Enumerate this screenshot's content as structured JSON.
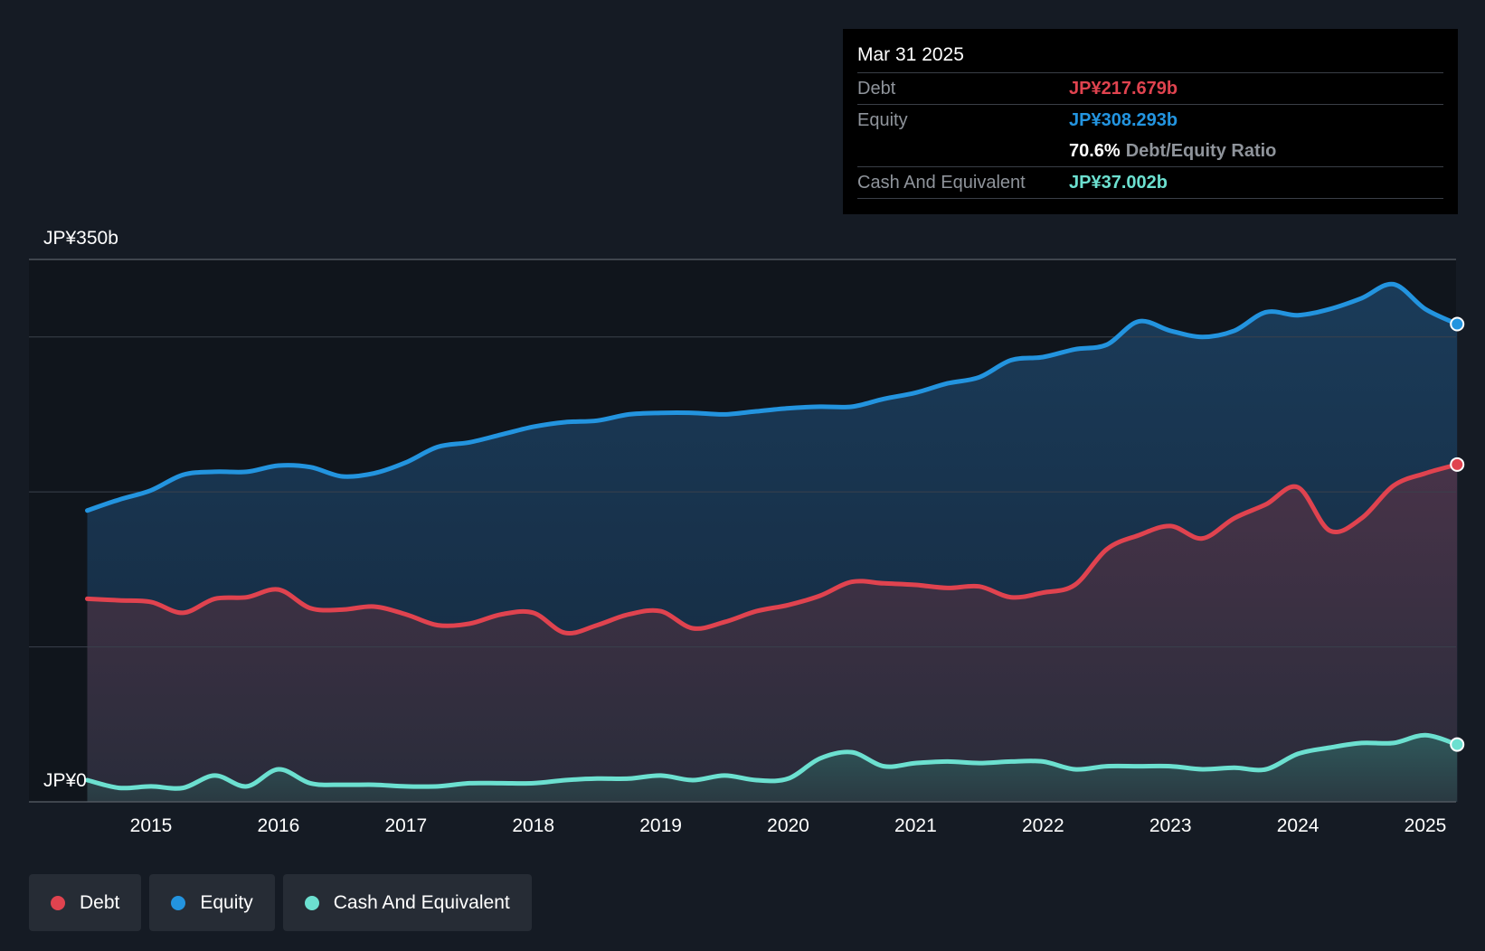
{
  "tooltip": {
    "date": "Mar 31 2025",
    "debt_label": "Debt",
    "debt_value": "JP¥217.679b",
    "equity_label": "Equity",
    "equity_value": "JP¥308.293b",
    "ratio_value": "70.6%",
    "ratio_label": "Debt/Equity Ratio",
    "cash_label": "Cash And Equivalent",
    "cash_value": "JP¥37.002b"
  },
  "legend": {
    "debt": "Debt",
    "equity": "Equity",
    "cash": "Cash And Equivalent"
  },
  "colors": {
    "debt": "#e0434f",
    "equity": "#2394df",
    "cash": "#6ce0d0",
    "background": "#151b24"
  },
  "chart_data": {
    "type": "area",
    "title": "",
    "xlabel": "",
    "ylabel": "",
    "y_top_label": "JP¥350b",
    "y_bottom_label": "JP¥0",
    "ylim": [
      0,
      350
    ],
    "xlim": [
      2014.5,
      2025.25
    ],
    "gridlines": [
      0,
      100,
      200,
      300,
      350
    ],
    "x_ticks": [
      2015,
      2016,
      2017,
      2018,
      2019,
      2020,
      2021,
      2022,
      2023,
      2024,
      2025
    ],
    "x_tick_labels": [
      "2015",
      "2016",
      "2017",
      "2018",
      "2019",
      "2020",
      "2021",
      "2022",
      "2023",
      "2024",
      "2025"
    ],
    "series": [
      {
        "name": "Equity",
        "key": "equity",
        "points": [
          [
            2014.5,
            188
          ],
          [
            2014.75,
            195
          ],
          [
            2015.0,
            201
          ],
          [
            2015.25,
            211
          ],
          [
            2015.5,
            213
          ],
          [
            2015.75,
            213
          ],
          [
            2016.0,
            217
          ],
          [
            2016.25,
            216
          ],
          [
            2016.5,
            210
          ],
          [
            2016.75,
            212
          ],
          [
            2017.0,
            219
          ],
          [
            2017.25,
            229
          ],
          [
            2017.5,
            232
          ],
          [
            2017.75,
            237
          ],
          [
            2018.0,
            242
          ],
          [
            2018.25,
            245
          ],
          [
            2018.5,
            246
          ],
          [
            2018.75,
            250
          ],
          [
            2019.0,
            251
          ],
          [
            2019.25,
            251
          ],
          [
            2019.5,
            250
          ],
          [
            2019.75,
            252
          ],
          [
            2020.0,
            254
          ],
          [
            2020.25,
            255
          ],
          [
            2020.5,
            255
          ],
          [
            2020.75,
            260
          ],
          [
            2021.0,
            264
          ],
          [
            2021.25,
            270
          ],
          [
            2021.5,
            274
          ],
          [
            2021.75,
            285
          ],
          [
            2022.0,
            287
          ],
          [
            2022.25,
            292
          ],
          [
            2022.5,
            295
          ],
          [
            2022.75,
            310
          ],
          [
            2023.0,
            304
          ],
          [
            2023.25,
            300
          ],
          [
            2023.5,
            304
          ],
          [
            2023.75,
            316
          ],
          [
            2024.0,
            314
          ],
          [
            2024.25,
            318
          ],
          [
            2024.5,
            325
          ],
          [
            2024.75,
            334
          ],
          [
            2025.0,
            318
          ],
          [
            2025.25,
            308.293
          ]
        ]
      },
      {
        "name": "Debt",
        "key": "debt",
        "points": [
          [
            2014.5,
            131
          ],
          [
            2014.75,
            130
          ],
          [
            2015.0,
            129
          ],
          [
            2015.25,
            122
          ],
          [
            2015.5,
            131
          ],
          [
            2015.75,
            132
          ],
          [
            2016.0,
            137
          ],
          [
            2016.25,
            125
          ],
          [
            2016.5,
            124
          ],
          [
            2016.75,
            126
          ],
          [
            2017.0,
            121
          ],
          [
            2017.25,
            114
          ],
          [
            2017.5,
            115
          ],
          [
            2017.75,
            121
          ],
          [
            2018.0,
            122
          ],
          [
            2018.25,
            109
          ],
          [
            2018.5,
            114
          ],
          [
            2018.75,
            121
          ],
          [
            2019.0,
            123
          ],
          [
            2019.25,
            112
          ],
          [
            2019.5,
            116
          ],
          [
            2019.75,
            123
          ],
          [
            2020.0,
            127
          ],
          [
            2020.25,
            133
          ],
          [
            2020.5,
            142
          ],
          [
            2020.75,
            141
          ],
          [
            2021.0,
            140
          ],
          [
            2021.25,
            138
          ],
          [
            2021.5,
            139
          ],
          [
            2021.75,
            132
          ],
          [
            2022.0,
            135
          ],
          [
            2022.25,
            140
          ],
          [
            2022.5,
            163
          ],
          [
            2022.75,
            172
          ],
          [
            2023.0,
            178
          ],
          [
            2023.25,
            170
          ],
          [
            2023.5,
            183
          ],
          [
            2023.75,
            192
          ],
          [
            2024.0,
            203
          ],
          [
            2024.25,
            175
          ],
          [
            2024.5,
            183
          ],
          [
            2024.75,
            204
          ],
          [
            2025.0,
            212
          ],
          [
            2025.25,
            217.679
          ]
        ]
      },
      {
        "name": "Cash And Equivalent",
        "key": "cash",
        "points": [
          [
            2014.5,
            14
          ],
          [
            2014.75,
            9
          ],
          [
            2015.0,
            10
          ],
          [
            2015.25,
            9
          ],
          [
            2015.5,
            17
          ],
          [
            2015.75,
            10
          ],
          [
            2016.0,
            21
          ],
          [
            2016.25,
            12
          ],
          [
            2016.5,
            11
          ],
          [
            2016.75,
            11
          ],
          [
            2017.0,
            10
          ],
          [
            2017.25,
            10
          ],
          [
            2017.5,
            12
          ],
          [
            2017.75,
            12
          ],
          [
            2018.0,
            12
          ],
          [
            2018.25,
            14
          ],
          [
            2018.5,
            15
          ],
          [
            2018.75,
            15
          ],
          [
            2019.0,
            17
          ],
          [
            2019.25,
            14
          ],
          [
            2019.5,
            17
          ],
          [
            2019.75,
            14
          ],
          [
            2020.0,
            15
          ],
          [
            2020.25,
            28
          ],
          [
            2020.5,
            32
          ],
          [
            2020.75,
            23
          ],
          [
            2021.0,
            25
          ],
          [
            2021.25,
            26
          ],
          [
            2021.5,
            25
          ],
          [
            2021.75,
            26
          ],
          [
            2022.0,
            26
          ],
          [
            2022.25,
            21
          ],
          [
            2022.5,
            23
          ],
          [
            2022.75,
            23
          ],
          [
            2023.0,
            23
          ],
          [
            2023.25,
            21
          ],
          [
            2023.5,
            22
          ],
          [
            2023.75,
            21
          ],
          [
            2024.0,
            31
          ],
          [
            2024.25,
            35
          ],
          [
            2024.5,
            38
          ],
          [
            2024.75,
            38
          ],
          [
            2025.0,
            43
          ],
          [
            2025.25,
            37.002
          ]
        ]
      }
    ]
  }
}
